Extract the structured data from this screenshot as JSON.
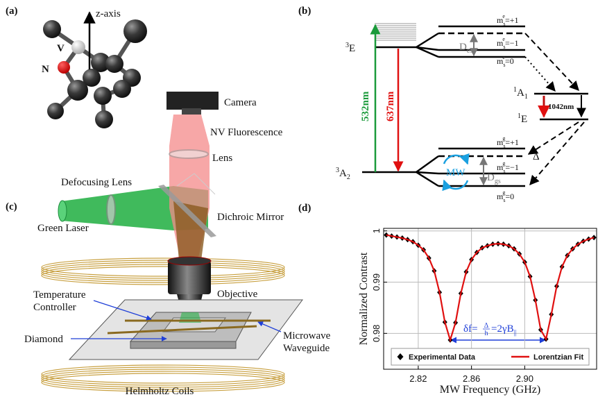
{
  "panel_a": {
    "label": "(a)",
    "z_axis": "z-axis",
    "v": "V",
    "n": "N"
  },
  "panel_b": {
    "label": "(b)",
    "e3": {
      "pre": "3",
      "base": "E"
    },
    "a2": {
      "pre": "3",
      "base": "A",
      "sub": "2"
    },
    "a1": {
      "pre": "1",
      "base": "A",
      "sub": "1"
    },
    "e1": {
      "pre": "1",
      "base": "E"
    },
    "green": "532nm",
    "red": "637nm",
    "ir": "1042nm",
    "des": {
      "base": "D",
      "sub": "es"
    },
    "dgs": {
      "base": "D",
      "sub": "gs"
    },
    "delta": "Δ",
    "mw": "MW",
    "levels": [
      {
        "base": "m",
        "sub": "s",
        "sup": "e",
        "rest": "=+1"
      },
      {
        "base": "m",
        "sub": "s",
        "sup": "e",
        "rest": "=−1"
      },
      {
        "base": "m",
        "sub": "s",
        "sup": "e",
        "rest": "=0"
      },
      {
        "base": "m",
        "sub": "s",
        "sup": "g",
        "rest": "=+1"
      },
      {
        "base": "m",
        "sub": "s",
        "sup": "g",
        "rest": "=−1"
      },
      {
        "base": "m",
        "sub": "s",
        "sup": "g",
        "rest": "=0"
      }
    ]
  },
  "panel_c": {
    "label": "(c)",
    "camera": "Camera",
    "fluorescence": "NV Fluorescence",
    "lens": "Lens",
    "defocusing_lens": "Defocusing Lens",
    "dichroic": "Dichroic Mirror",
    "laser": "Green Laser",
    "objective": "Objective",
    "temperature": [
      "Temperature",
      "Controller"
    ],
    "diamond": "Diamond",
    "waveguide": [
      "Microwave",
      "Waveguide"
    ],
    "coils": "Helmholtz Coils"
  },
  "panel_d_label": "(d)",
  "chart_data": {
    "type": "line",
    "xlabel": "MW Frequency (GHz)",
    "ylabel": "Normalized Contrast",
    "annotation": {
      "pre": "δf=",
      "num": "Δ",
      "den": "h",
      "post": "=2γB",
      "sub": "||"
    },
    "x": [
      2.796,
      2.8,
      2.804,
      2.808,
      2.812,
      2.816,
      2.82,
      2.824,
      2.828,
      2.832,
      2.836,
      2.84,
      2.844,
      2.848,
      2.852,
      2.856,
      2.86,
      2.864,
      2.868,
      2.872,
      2.876,
      2.88,
      2.884,
      2.888,
      2.892,
      2.896,
      2.9,
      2.904,
      2.908,
      2.912,
      2.916,
      2.92,
      2.924,
      2.928,
      2.932,
      2.936,
      2.94,
      2.944,
      2.948,
      2.952
    ],
    "series": [
      {
        "name": "Experimental Data",
        "kind": "scatter",
        "color": "#000000",
        "values": [
          0.9992,
          0.999,
          0.9988,
          0.9986,
          0.9983,
          0.9979,
          0.9972,
          0.9963,
          0.9947,
          0.9922,
          0.988,
          0.9822,
          0.9787,
          0.9821,
          0.9878,
          0.992,
          0.9944,
          0.9958,
          0.9967,
          0.9971,
          0.9974,
          0.9975,
          0.9974,
          0.9971,
          0.9965,
          0.9955,
          0.9939,
          0.9911,
          0.9865,
          0.9807,
          0.9789,
          0.9837,
          0.9892,
          0.993,
          0.9952,
          0.9965,
          0.9974,
          0.998,
          0.9984,
          0.9987
        ]
      },
      {
        "name": "Lorentzian Fit",
        "kind": "line",
        "color": "#e01010",
        "values": [
          0.9992,
          0.999,
          0.9988,
          0.9986,
          0.9983,
          0.9979,
          0.9972,
          0.9963,
          0.9947,
          0.9922,
          0.988,
          0.9822,
          0.9787,
          0.9821,
          0.9878,
          0.992,
          0.9944,
          0.9958,
          0.9967,
          0.9971,
          0.9974,
          0.9975,
          0.9974,
          0.9971,
          0.9965,
          0.9955,
          0.9939,
          0.9911,
          0.9865,
          0.9807,
          0.9789,
          0.9837,
          0.9892,
          0.993,
          0.9952,
          0.9965,
          0.9974,
          0.998,
          0.9984,
          0.9987
        ]
      }
    ],
    "xlim": [
      2.794,
      2.954
    ],
    "ylim": [
      0.973,
      1.0005
    ],
    "xticks": [
      2.82,
      2.86,
      {
        "value": 2.9,
        "label": "2.90"
      }
    ],
    "yticks": [
      0.98,
      0.99,
      1
    ],
    "grid": true,
    "legend": "lower center"
  }
}
